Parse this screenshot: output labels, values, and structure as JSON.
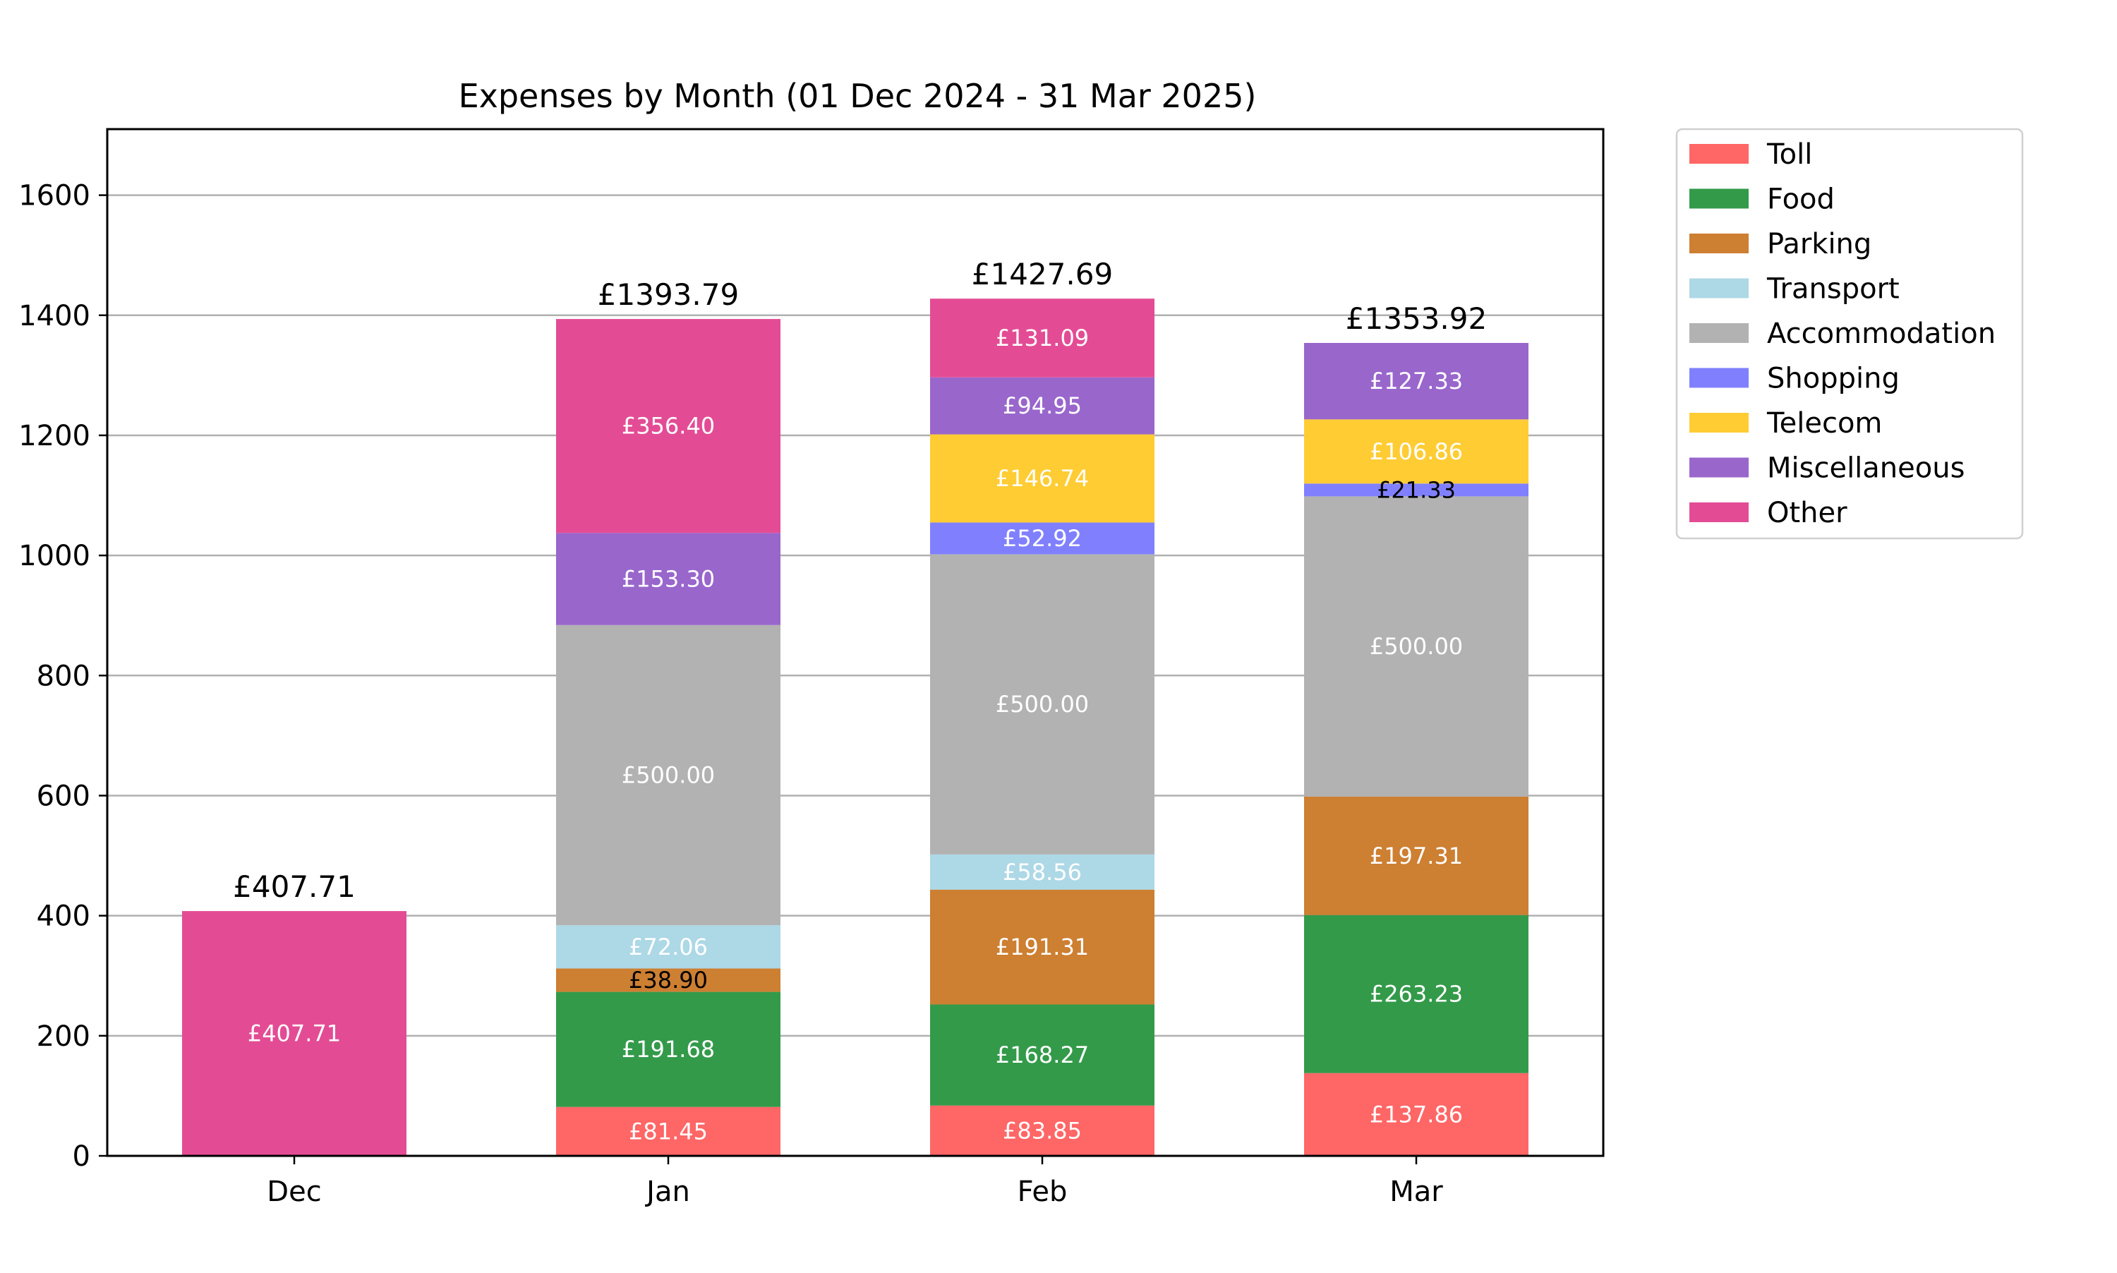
{
  "chart_data": {
    "type": "bar",
    "stacked": true,
    "title": "Expenses by Month (01 Dec 2024 - 31 Mar 2025)",
    "xlabel": "",
    "ylabel": "",
    "ylim": [
      0,
      1710
    ],
    "yticks": [
      0,
      200,
      400,
      600,
      800,
      1000,
      1200,
      1400,
      1600
    ],
    "grid": "y",
    "legend_position": "outside-right",
    "categories": [
      "Dec",
      "Jan",
      "Feb",
      "Mar"
    ],
    "totals": [
      "£407.71",
      "£1393.79",
      "£1427.69",
      "£1353.92"
    ],
    "series": [
      {
        "name": "Toll",
        "color": "#ff6666",
        "label_color": "#ffffff",
        "values": [
          0,
          81.45,
          83.85,
          137.86
        ],
        "labels": [
          "",
          "£81.45",
          "£83.85",
          "£137.86"
        ]
      },
      {
        "name": "Food",
        "color": "#339a4a",
        "label_color": "#ffffff",
        "values": [
          0,
          191.68,
          168.27,
          263.23
        ],
        "labels": [
          "",
          "£191.68",
          "£168.27",
          "£263.23"
        ]
      },
      {
        "name": "Parking",
        "color": "#cd7f32",
        "label_color": "#ffffff",
        "values": [
          0,
          38.9,
          191.31,
          197.31
        ],
        "labels": [
          "",
          "£38.90",
          "£191.31",
          "£197.31"
        ]
      },
      {
        "name": "Transport",
        "color": "#add8e6",
        "label_color": "#ffffff",
        "values": [
          0,
          72.06,
          58.56,
          0
        ],
        "labels": [
          "",
          "£72.06",
          "£58.56",
          ""
        ]
      },
      {
        "name": "Accommodation",
        "color": "#b2b2b2",
        "label_color": "#ffffff",
        "values": [
          0,
          500.0,
          500.0,
          500.0
        ],
        "labels": [
          "",
          "£500.00",
          "£500.00",
          "£500.00"
        ]
      },
      {
        "name": "Shopping",
        "color": "#8080ff",
        "label_color": "#ffffff",
        "values": [
          0,
          0,
          52.92,
          21.33
        ],
        "labels": [
          "",
          "",
          "£52.92",
          "£21.33"
        ]
      },
      {
        "name": "Telecom",
        "color": "#ffcc33",
        "label_color": "#ffffff",
        "values": [
          0,
          0,
          146.74,
          106.86
        ],
        "labels": [
          "",
          "",
          "£146.74",
          "£106.86"
        ]
      },
      {
        "name": "Miscellaneous",
        "color": "#9966cc",
        "label_color": "#ffffff",
        "values": [
          0,
          153.3,
          94.95,
          127.33
        ],
        "labels": [
          "",
          "£153.30",
          "£94.95",
          "£127.33"
        ]
      },
      {
        "name": "Other",
        "color": "#e34c95",
        "label_color": "#ffffff",
        "values": [
          407.71,
          356.4,
          131.09,
          0
        ],
        "labels": [
          "£407.71",
          "£356.40",
          "£131.09",
          ""
        ]
      }
    ]
  }
}
